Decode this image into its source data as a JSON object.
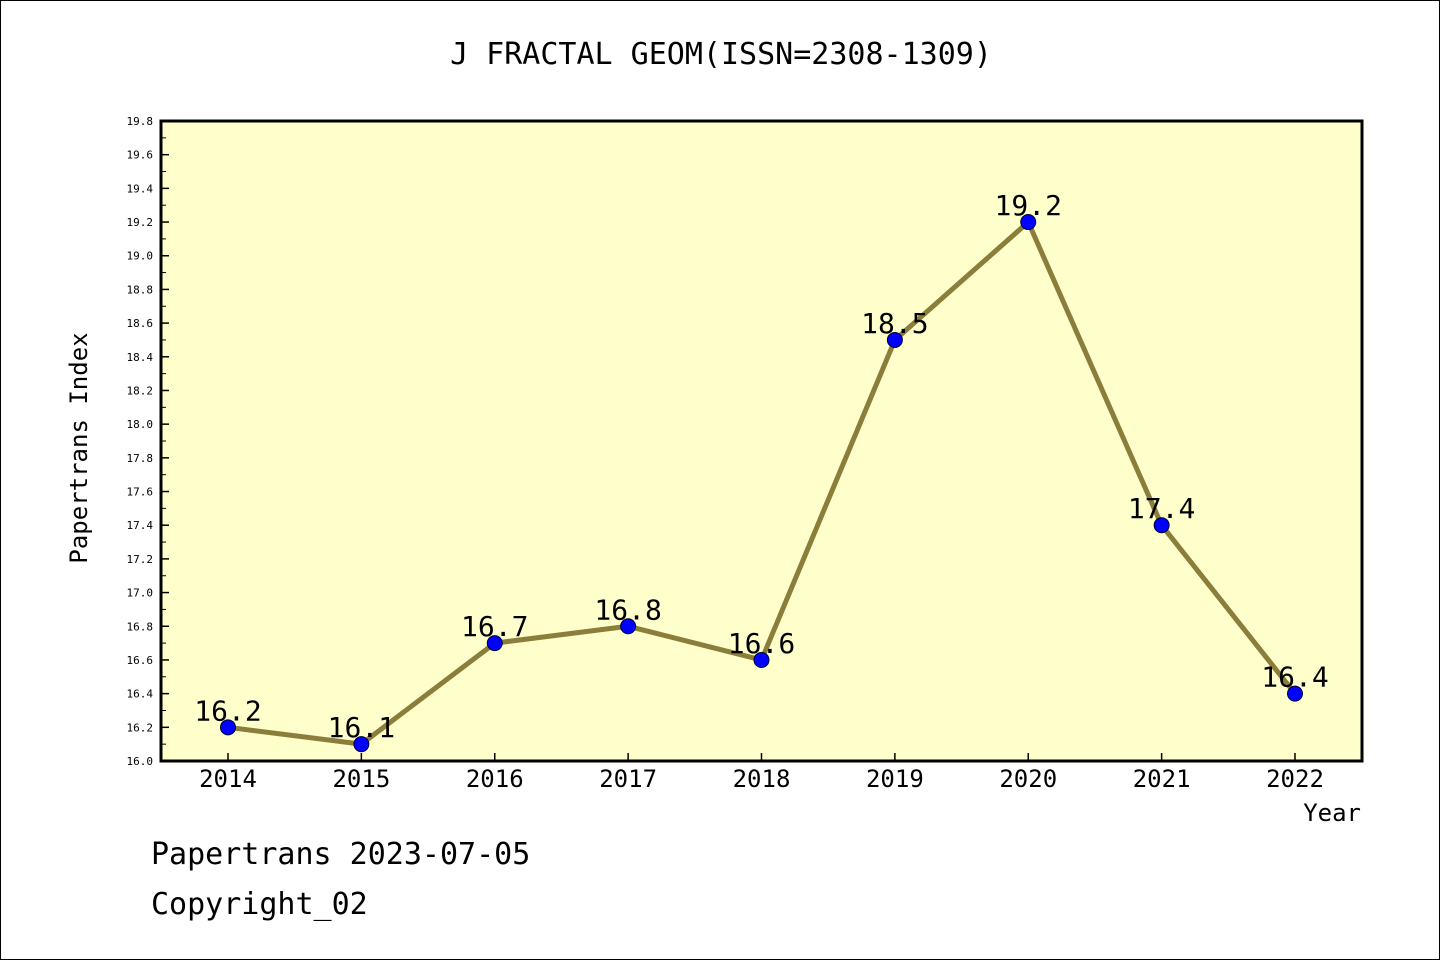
{
  "chart_data": {
    "type": "line",
    "title": "J FRACTAL GEOM(ISSN=2308-1309)",
    "xlabel": "Year",
    "ylabel": "Papertrans Index",
    "categories": [
      "2014",
      "2015",
      "2016",
      "2017",
      "2018",
      "2019",
      "2020",
      "2021",
      "2022"
    ],
    "series": [
      {
        "values": [
          16.2,
          16.1,
          16.7,
          16.8,
          16.6,
          18.5,
          19.2,
          17.4,
          16.4
        ]
      }
    ],
    "data_labels": [
      "16.2",
      "16.1",
      "16.7",
      "16.8",
      "16.6",
      "18.5",
      "19.2",
      "17.4",
      "16.4"
    ],
    "ylim": [
      16.0,
      19.8
    ],
    "yticks": [
      "16.0",
      "16.2",
      "16.4",
      "16.6",
      "16.8",
      "17.0",
      "17.2",
      "17.4",
      "17.6",
      "17.8",
      "18.0",
      "18.2",
      "18.4",
      "18.6",
      "18.8",
      "19.0",
      "19.2",
      "19.4",
      "19.6",
      "19.8"
    ],
    "grid": false,
    "colors": {
      "plot_background": "#ffffcc",
      "line": "#8b7d3a",
      "marker": "#0000ff"
    }
  },
  "footer": {
    "line1": "Papertrans 2023-07-05",
    "line2": "Copyright_02"
  }
}
